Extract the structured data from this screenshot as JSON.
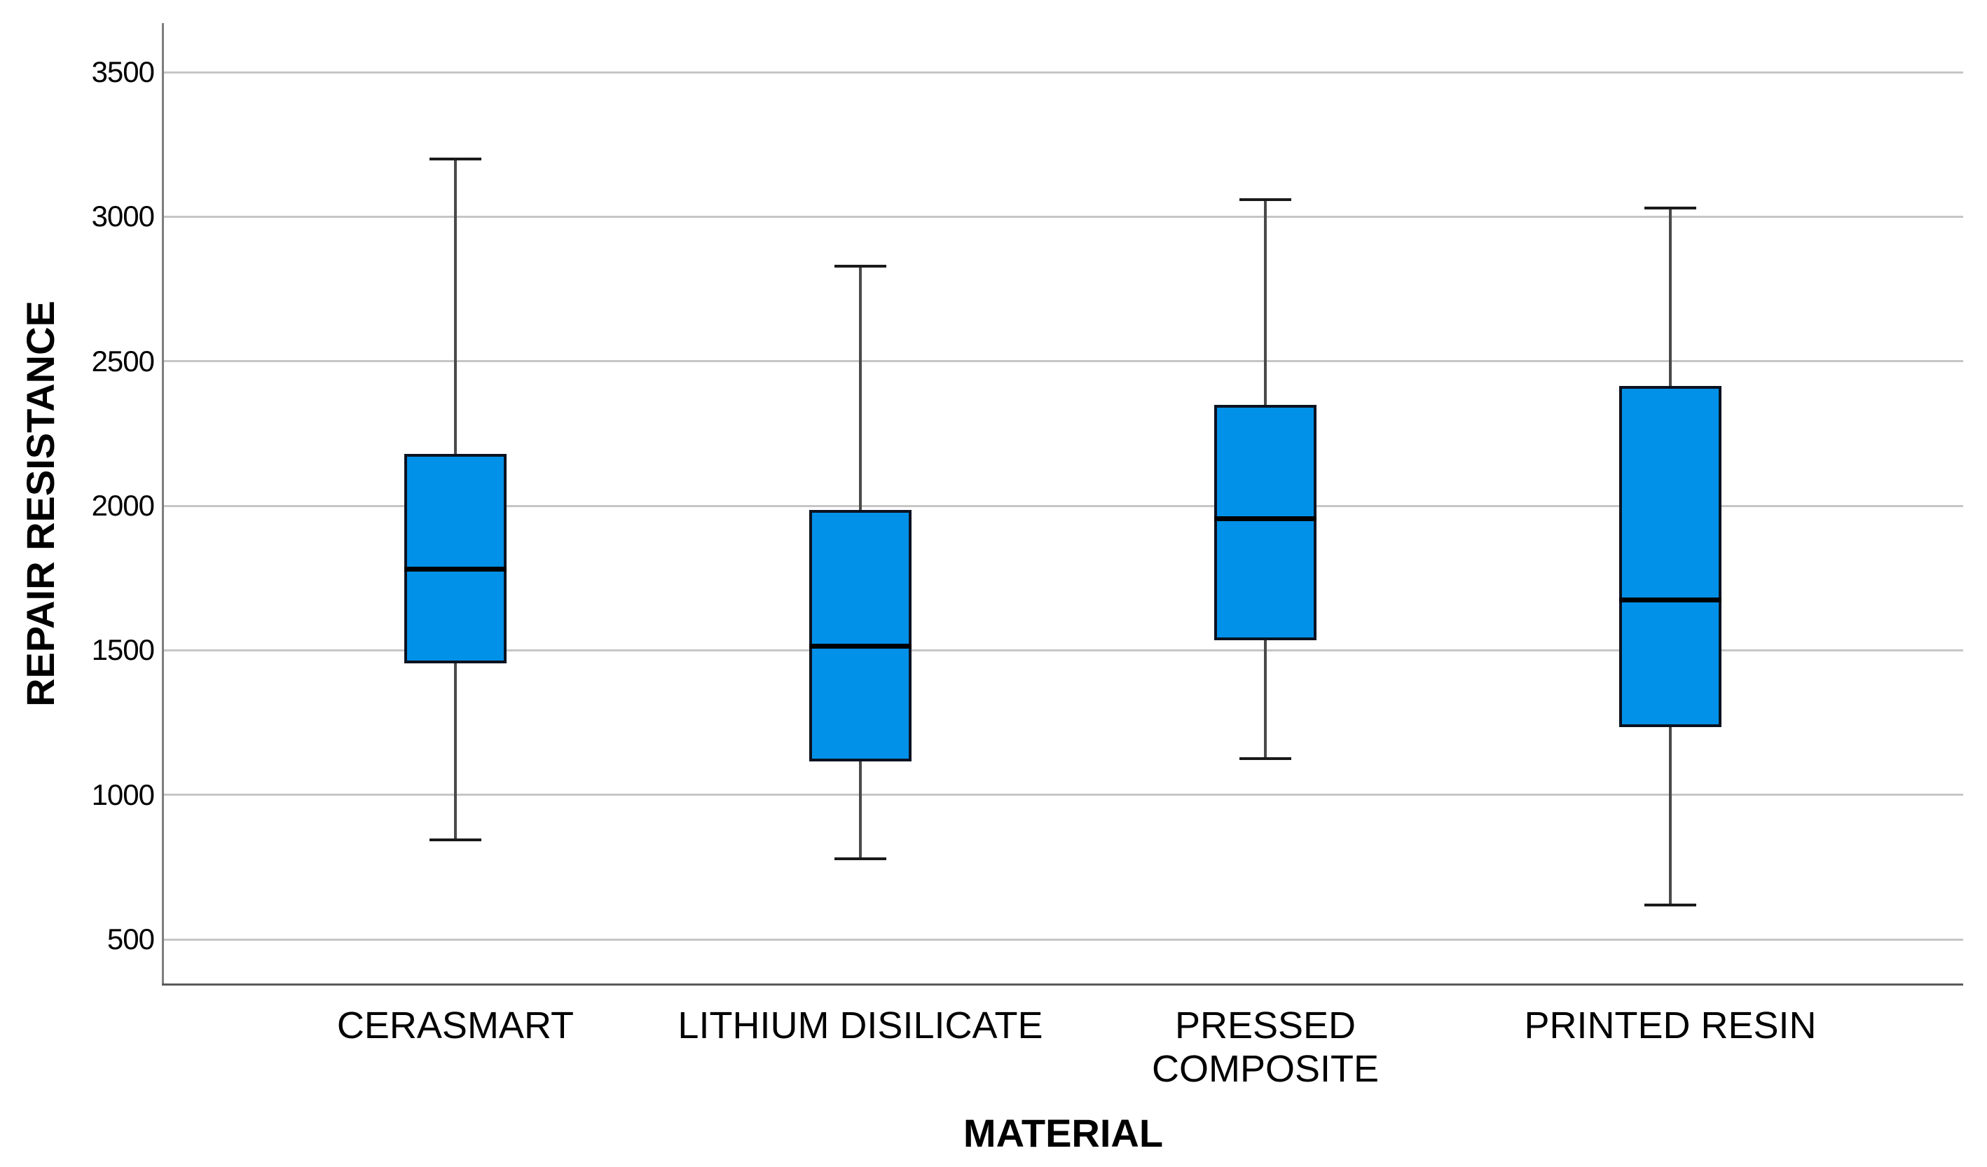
{
  "chart": {
    "y_axis_title": "REPAIR RESISTANCE",
    "x_axis_title": "MATERIAL"
  },
  "chart_data": {
    "type": "boxplot",
    "title": "",
    "xlabel": "MATERIAL",
    "ylabel": "REPAIR RESISTANCE",
    "ylim": [
      345,
      3670
    ],
    "y_ticks": [
      500,
      1000,
      1500,
      2000,
      2500,
      3000,
      3500
    ],
    "grid": "horizontal-only",
    "legend": "none",
    "categories": [
      "CERASMART",
      "LITHIUM DISILICATE",
      "PRESSED\nCOMPOSITE",
      "PRINTED RESIN"
    ],
    "boxes": [
      {
        "category": "CERASMART",
        "min": 845,
        "q1": 1455,
        "median": 1780,
        "q3": 2180,
        "max": 3200
      },
      {
        "category": "LITHIUM DISILICATE",
        "min": 780,
        "q1": 1115,
        "median": 1515,
        "q3": 1985,
        "max": 2830
      },
      {
        "category": "PRESSED COMPOSITE",
        "min": 1125,
        "q1": 1535,
        "median": 1955,
        "q3": 2350,
        "max": 3060
      },
      {
        "category": "PRINTED RESIN",
        "min": 620,
        "q1": 1235,
        "median": 1675,
        "q3": 2415,
        "max": 3030
      }
    ],
    "colors": {
      "box_fill": "#0291e8",
      "box_border": "#0b1220",
      "median": "#000000",
      "whisker": "#4a4a4a",
      "whisker_cap": "#1a1a1a",
      "gridline": "#c6c6c6",
      "y_axis_line": "#7d7d7d",
      "x_axis_line": "#595959",
      "background": "#ffffff",
      "text": "#000000"
    }
  }
}
